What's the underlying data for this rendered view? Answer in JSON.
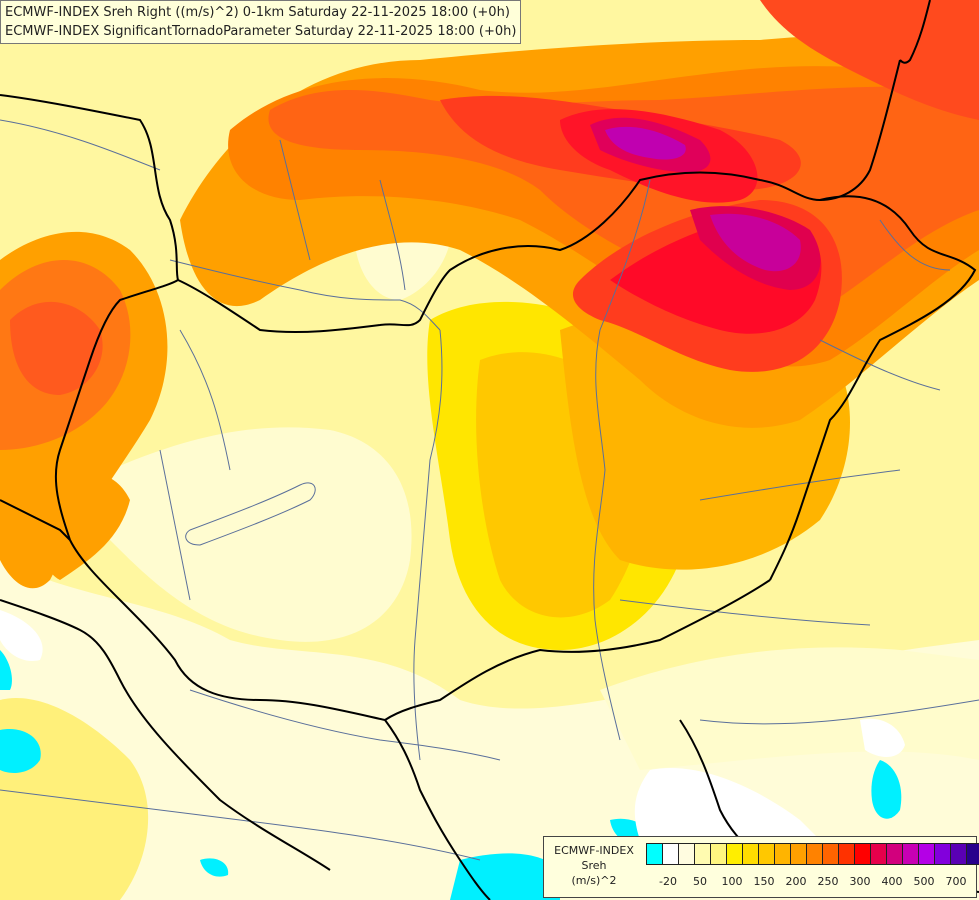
{
  "title_lines": [
    "ECMWF-INDEX Sreh Right ((m/s)^2) 0-1km Saturday 22-11-2025 18:00 (+0h)",
    "ECMWF-INDEX SignificantTornadoParameter Saturday 22-11-2025 18:00 (+0h)"
  ],
  "legend": {
    "line1": "ECMWF-INDEX",
    "line2": "Sreh",
    "line3": "(m/s)^2",
    "colors": [
      "#00ffff",
      "#ffffff",
      "#fffce0",
      "#fffbb0",
      "#fff680",
      "#ffee00",
      "#ffdc00",
      "#ffc800",
      "#ffb400",
      "#ffa000",
      "#ff8200",
      "#ff6400",
      "#ff3200",
      "#ff0000",
      "#e6004b",
      "#d2007d",
      "#c800b4",
      "#b400e6",
      "#8200dc",
      "#5a00b4",
      "#28008c",
      "#0a0064"
    ],
    "ticks": [
      "-20",
      "50",
      "100",
      "150",
      "200",
      "250",
      "300",
      "400",
      "500",
      "700"
    ]
  },
  "map": {
    "field_colors": {
      "pale": "#fffcd8",
      "light": "#fff9a8",
      "yellow": "#fff04a",
      "gold": "#ffd800",
      "amber": "#ffb800",
      "orange": "#ff9400",
      "deep_orange": "#ff6e14",
      "red_orange": "#ff4a1e",
      "red": "#ff1e28",
      "crimson": "#e8004e",
      "magenta": "#c8009a",
      "purple": "#b000d0",
      "cyan": "#00f0ff",
      "white": "#ffffff"
    },
    "border_color": "#000000",
    "river_color": "#5a6f9a"
  }
}
